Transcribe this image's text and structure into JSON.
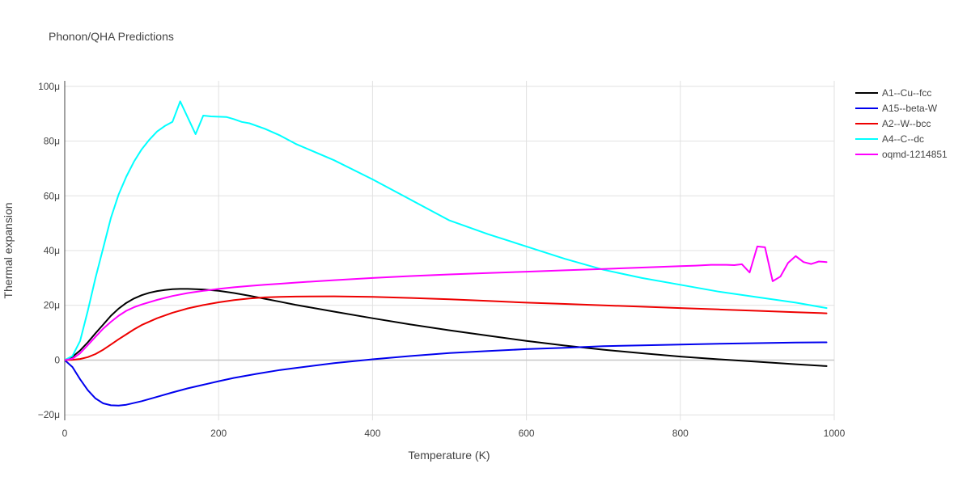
{
  "chart_data": {
    "type": "line",
    "title": "Phonon/QHA Predictions",
    "xlabel": "Temperature (K)",
    "ylabel": "Thermal expansion",
    "xlim": [
      0,
      1000
    ],
    "ylim": [
      -2.2e-05,
      0.000102
    ],
    "x_ticks": [
      {
        "value": 0,
        "label": "0"
      },
      {
        "value": 200,
        "label": "200"
      },
      {
        "value": 400,
        "label": "400"
      },
      {
        "value": 600,
        "label": "600"
      },
      {
        "value": 800,
        "label": "800"
      },
      {
        "value": 1000,
        "label": "1000"
      }
    ],
    "y_ticks": [
      {
        "value": -2e-05,
        "label": "−20μ"
      },
      {
        "value": 0,
        "label": "0"
      },
      {
        "value": 2e-05,
        "label": "20μ"
      },
      {
        "value": 4e-05,
        "label": "40μ"
      },
      {
        "value": 6e-05,
        "label": "60μ"
      },
      {
        "value": 8e-05,
        "label": "80μ"
      },
      {
        "value": 0.0001,
        "label": "100μ"
      }
    ],
    "grid": true,
    "legend_position": "top-right",
    "series": [
      {
        "name": "A1--Cu--fcc",
        "color": "#000000",
        "x": [
          0,
          10,
          20,
          30,
          40,
          50,
          60,
          70,
          80,
          90,
          100,
          110,
          120,
          130,
          140,
          150,
          160,
          180,
          200,
          220,
          240,
          260,
          280,
          300,
          350,
          400,
          450,
          500,
          550,
          600,
          650,
          700,
          750,
          800,
          850,
          900,
          950,
          990
        ],
        "y": [
          0,
          1.2e-06,
          3.5e-06,
          6.5e-06,
          9.8e-06,
          1.3e-05,
          1.62e-05,
          1.88e-05,
          2.09e-05,
          2.25e-05,
          2.37e-05,
          2.46e-05,
          2.52e-05,
          2.56e-05,
          2.59e-05,
          2.6e-05,
          2.6e-05,
          2.58e-05,
          2.53e-05,
          2.45e-05,
          2.35e-05,
          2.24e-05,
          2.13e-05,
          2.02e-05,
          1.77e-05,
          1.53e-05,
          1.3e-05,
          1.09e-05,
          8.9e-06,
          7e-06,
          5.3e-06,
          3.8e-06,
          2.5e-06,
          1.3e-06,
          3e-07,
          -6e-07,
          -1.5e-06,
          -2.2e-06
        ]
      },
      {
        "name": "A15--beta-W",
        "color": "#0000ee",
        "x": [
          0,
          10,
          20,
          30,
          40,
          50,
          60,
          70,
          80,
          100,
          120,
          140,
          160,
          180,
          200,
          220,
          250,
          280,
          300,
          350,
          400,
          450,
          500,
          550,
          600,
          650,
          700,
          750,
          800,
          850,
          900,
          950,
          990
        ],
        "y": [
          0,
          -2.5e-06,
          -7e-06,
          -1.1e-05,
          -1.4e-05,
          -1.58e-05,
          -1.65e-05,
          -1.66e-05,
          -1.63e-05,
          -1.5e-05,
          -1.34e-05,
          -1.18e-05,
          -1.03e-05,
          -9e-06,
          -7.7e-06,
          -6.5e-06,
          -5e-06,
          -3.6e-06,
          -2.9e-06,
          -1.1e-06,
          3e-07,
          1.5e-06,
          2.6e-06,
          3.3e-06,
          4e-06,
          4.5e-06,
          5.1e-06,
          5.4e-06,
          5.7e-06,
          6e-06,
          6.2e-06,
          6.4e-06,
          6.5e-06
        ]
      },
      {
        "name": "A2--W--bcc",
        "color": "#ee0000",
        "x": [
          0,
          10,
          20,
          30,
          40,
          50,
          60,
          70,
          80,
          90,
          100,
          120,
          140,
          160,
          180,
          200,
          220,
          240,
          260,
          280,
          300,
          350,
          400,
          450,
          500,
          550,
          600,
          650,
          700,
          750,
          800,
          850,
          900,
          950,
          990
        ],
        "y": [
          0,
          1e-07,
          4e-07,
          1.1e-06,
          2.2e-06,
          3.8e-06,
          5.7e-06,
          7.6e-06,
          9.4e-06,
          1.12e-05,
          1.28e-05,
          1.53e-05,
          1.73e-05,
          1.89e-05,
          2.01e-05,
          2.11e-05,
          2.19e-05,
          2.25e-05,
          2.29e-05,
          2.31e-05,
          2.32e-05,
          2.33e-05,
          2.31e-05,
          2.27e-05,
          2.22e-05,
          2.16e-05,
          2.1e-05,
          2.05e-05,
          2e-05,
          1.95e-05,
          1.9e-05,
          1.85e-05,
          1.8e-05,
          1.75e-05,
          1.71e-05
        ]
      },
      {
        "name": "A4--C--dc",
        "color": "#00ffff",
        "x": [
          0,
          10,
          20,
          30,
          40,
          50,
          60,
          70,
          80,
          90,
          100,
          110,
          120,
          130,
          140,
          150,
          160,
          170,
          180,
          190,
          200,
          210,
          220,
          230,
          240,
          260,
          280,
          300,
          350,
          400,
          450,
          500,
          550,
          600,
          650,
          700,
          750,
          800,
          850,
          900,
          950,
          990
        ],
        "y": [
          0,
          1.5e-06,
          7e-06,
          1.8e-05,
          3e-05,
          4.1e-05,
          5.2e-05,
          6.05e-05,
          6.7e-05,
          7.25e-05,
          7.7e-05,
          8.05e-05,
          8.35e-05,
          8.55e-05,
          8.7e-05,
          9.45e-05,
          8.85e-05,
          8.25e-05,
          8.93e-05,
          8.9e-05,
          8.89e-05,
          8.88e-05,
          8.8e-05,
          8.7e-05,
          8.65e-05,
          8.45e-05,
          8.2e-05,
          7.9e-05,
          7.3e-05,
          6.6e-05,
          5.85e-05,
          5.1e-05,
          4.6e-05,
          4.15e-05,
          3.7e-05,
          3.3e-05,
          3e-05,
          2.75e-05,
          2.5e-05,
          2.3e-05,
          2.1e-05,
          1.9e-05
        ]
      },
      {
        "name": "oqmd-1214851",
        "color": "#ff00ff",
        "x": [
          0,
          10,
          20,
          30,
          40,
          50,
          60,
          70,
          80,
          90,
          100,
          120,
          140,
          160,
          180,
          200,
          220,
          240,
          260,
          280,
          300,
          350,
          400,
          450,
          500,
          550,
          600,
          650,
          700,
          750,
          800,
          820,
          840,
          860,
          870,
          880,
          890,
          900,
          910,
          920,
          930,
          940,
          950,
          960,
          970,
          980,
          990
        ],
        "y": [
          0,
          5e-07,
          2.5e-06,
          5.5e-06,
          8.5e-06,
          1.15e-05,
          1.4e-05,
          1.62e-05,
          1.8e-05,
          1.93e-05,
          2.03e-05,
          2.2e-05,
          2.34e-05,
          2.45e-05,
          2.53e-05,
          2.6e-05,
          2.66e-05,
          2.71e-05,
          2.75e-05,
          2.79e-05,
          2.83e-05,
          2.92e-05,
          3e-05,
          3.07e-05,
          3.13e-05,
          3.18e-05,
          3.23e-05,
          3.28e-05,
          3.33e-05,
          3.38e-05,
          3.43e-05,
          3.45e-05,
          3.48e-05,
          3.48e-05,
          3.47e-05,
          3.5e-05,
          3.2e-05,
          4.15e-05,
          4.12e-05,
          2.88e-05,
          3.05e-05,
          3.55e-05,
          3.8e-05,
          3.58e-05,
          3.51e-05,
          3.6e-05,
          3.58e-05
        ]
      }
    ]
  }
}
